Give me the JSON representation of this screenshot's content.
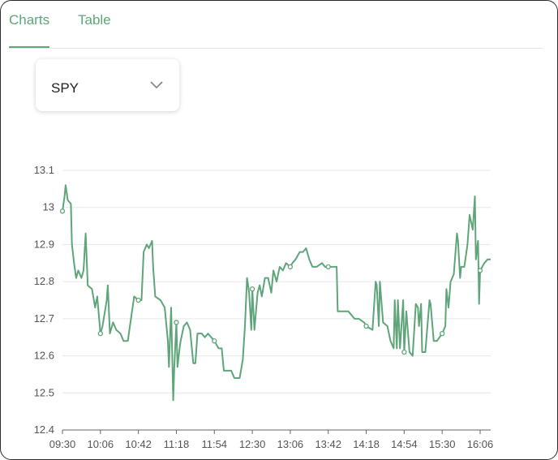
{
  "tabs": [
    "Charts",
    "Table"
  ],
  "active_tab": 0,
  "selector": "SPY",
  "chart_data": {
    "type": "line",
    "color": "#5fa57a",
    "grid": true,
    "markers": true,
    "xlim": [
      "09:30",
      "16:16"
    ],
    "xticks": [
      "09:30",
      "10:06",
      "10:42",
      "11:18",
      "11:54",
      "12:30",
      "13:06",
      "13:42",
      "14:18",
      "14:54",
      "15:30",
      "16:06"
    ],
    "ylim": [
      12.4,
      13.1
    ],
    "yticks": [
      12.4,
      12.5,
      12.6,
      12.7,
      12.8,
      12.9,
      13,
      13.1
    ],
    "x": [
      "09:30",
      "09:32",
      "09:33",
      "09:35",
      "09:38",
      "09:39",
      "09:41",
      "09:43",
      "09:45",
      "09:48",
      "09:50",
      "09:52",
      "09:54",
      "09:58",
      "10:01",
      "10:03",
      "10:06",
      "10:08",
      "10:12",
      "10:13",
      "10:15",
      "10:18",
      "10:21",
      "10:25",
      "10:28",
      "10:32",
      "10:33",
      "10:36",
      "10:38",
      "10:42",
      "10:45",
      "10:47",
      "10:50",
      "10:52",
      "10:55",
      "10:56",
      "10:58",
      "11:03",
      "11:07",
      "11:10",
      "11:11",
      "11:13",
      "11:15",
      "11:16",
      "11:18",
      "11:19",
      "11:21",
      "11:22",
      "11:25",
      "11:28",
      "11:31",
      "11:34",
      "11:36",
      "11:38",
      "11:42",
      "11:45",
      "11:48",
      "11:51",
      "11:54",
      "11:58",
      "12:01",
      "12:03",
      "12:07",
      "12:10",
      "12:13",
      "12:18",
      "12:21",
      "12:23",
      "12:25",
      "12:27",
      "12:29",
      "12:30",
      "12:32",
      "12:35",
      "12:37",
      "12:39",
      "12:42",
      "12:45",
      "12:48",
      "12:50",
      "12:53",
      "12:56",
      "12:59",
      "13:02",
      "13:06",
      "13:08",
      "13:11",
      "13:15",
      "13:18",
      "13:21",
      "13:24",
      "13:27",
      "13:31",
      "13:36",
      "13:39",
      "13:42",
      "13:47",
      "13:50",
      "13:51",
      "14:01",
      "14:07",
      "14:11",
      "14:16",
      "14:18",
      "14:24",
      "14:27",
      "14:28",
      "14:30",
      "14:31",
      "14:34",
      "14:38",
      "14:41",
      "14:44",
      "14:45",
      "14:47",
      "14:48",
      "14:50",
      "14:53",
      "14:54",
      "14:56",
      "14:59",
      "15:02",
      "15:05",
      "15:07",
      "15:08",
      "15:10",
      "15:11",
      "15:14",
      "15:18",
      "15:19",
      "15:22",
      "15:25",
      "15:30",
      "15:33",
      "15:34",
      "15:36",
      "15:38",
      "15:41",
      "15:44",
      "15:45",
      "15:47",
      "15:48",
      "15:51",
      "15:54",
      "15:56",
      "15:59",
      "16:01",
      "16:02",
      "16:04",
      "16:05",
      "16:06",
      "16:10",
      "16:13",
      "16:16"
    ],
    "values": [
      12.99,
      13.03,
      13.06,
      13.02,
      13.01,
      12.9,
      12.85,
      12.81,
      12.83,
      12.81,
      12.83,
      12.93,
      12.79,
      12.78,
      12.73,
      12.76,
      12.66,
      12.68,
      12.75,
      12.79,
      12.66,
      12.69,
      12.67,
      12.66,
      12.64,
      12.64,
      12.66,
      12.72,
      12.76,
      12.75,
      12.75,
      12.88,
      12.9,
      12.89,
      12.91,
      12.84,
      12.76,
      12.75,
      12.73,
      12.64,
      12.57,
      12.73,
      12.48,
      12.57,
      12.69,
      12.57,
      12.62,
      12.64,
      12.68,
      12.69,
      12.67,
      12.58,
      12.58,
      12.66,
      12.66,
      12.65,
      12.66,
      12.65,
      12.64,
      12.62,
      12.62,
      12.56,
      12.56,
      12.56,
      12.54,
      12.54,
      12.59,
      12.68,
      12.81,
      12.77,
      12.67,
      12.78,
      12.67,
      12.77,
      12.79,
      12.76,
      12.81,
      12.81,
      12.77,
      12.83,
      12.8,
      12.84,
      12.83,
      12.85,
      12.84,
      12.85,
      12.86,
      12.88,
      12.88,
      12.89,
      12.86,
      12.84,
      12.84,
      12.85,
      12.84,
      12.84,
      12.84,
      12.84,
      12.72,
      12.72,
      12.7,
      12.7,
      12.69,
      12.68,
      12.67,
      12.8,
      12.79,
      12.68,
      12.8,
      12.69,
      12.68,
      12.64,
      12.62,
      12.75,
      12.62,
      12.75,
      12.62,
      12.75,
      12.61,
      12.72,
      12.61,
      12.6,
      12.74,
      12.73,
      12.68,
      12.74,
      12.61,
      12.61,
      12.75,
      12.74,
      12.64,
      12.64,
      12.66,
      12.68,
      12.78,
      12.73,
      12.8,
      12.82,
      12.93,
      12.91,
      12.81,
      12.84,
      12.84,
      12.9,
      12.98,
      12.94,
      13.03,
      12.86,
      12.91,
      12.74,
      12.83,
      12.85,
      12.86,
      12.86
    ]
  }
}
